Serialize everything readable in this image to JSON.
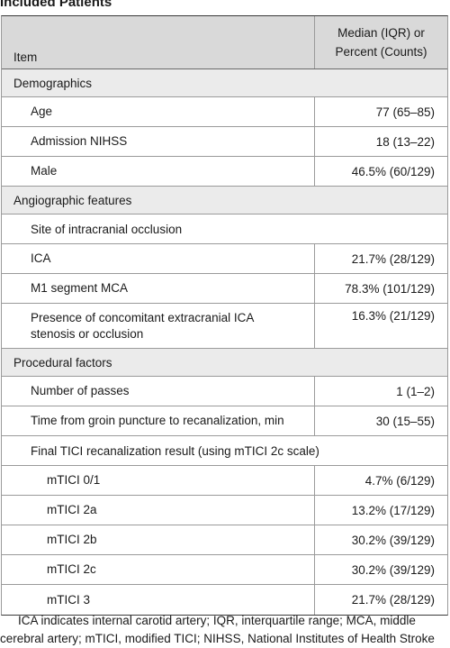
{
  "caption": "Included Patients",
  "header": {
    "item": "Item",
    "value_line1": "Median (IQR) or",
    "value_line2": "Percent (Counts)"
  },
  "rows": {
    "demographics": "Demographics",
    "age_label": "Age",
    "age_value": "77 (65–85)",
    "nihss_label": "Admission NIHSS",
    "nihss_value": "18 (13–22)",
    "male_label": "Male",
    "male_value": "46.5% (60/129)",
    "angio": "Angiographic features",
    "site": "Site of intracranial occlusion",
    "ica_label": "ICA",
    "ica_value": "21.7% (28/129)",
    "m1_label": "M1 segment MCA",
    "m1_value": "78.3% (101/129)",
    "conc_line1": "Presence of concomitant extracranial ICA",
    "conc_line2": "stenosis or occlusion",
    "conc_value": "16.3% (21/129)",
    "proc": "Procedural factors",
    "passes_label": "Number of passes",
    "passes_value": "1 (1–2)",
    "time_label": "Time from groin puncture to recanalization, min",
    "time_value": "30 (15–55)",
    "tici_header": "Final TICI recanalization result (using mTICI 2c scale)",
    "t01_label": "mTICI 0/1",
    "t01_value": "4.7% (6/129)",
    "t2a_label": "mTICI 2a",
    "t2a_value": "13.2% (17/129)",
    "t2b_label": "mTICI 2b",
    "t2b_value": "30.2% (39/129)",
    "t2c_label": "mTICI 2c",
    "t2c_value": "30.2% (39/129)",
    "t3_label": "mTICI 3",
    "t3_value": "21.7% (28/129)"
  },
  "footnote": {
    "line1": "ICA indicates internal carotid artery; IQR, interquartile range; MCA, middle",
    "line2": "cerebral artery; mTICI, modified TICI; NIHSS, National Institutes of Health Stroke"
  }
}
